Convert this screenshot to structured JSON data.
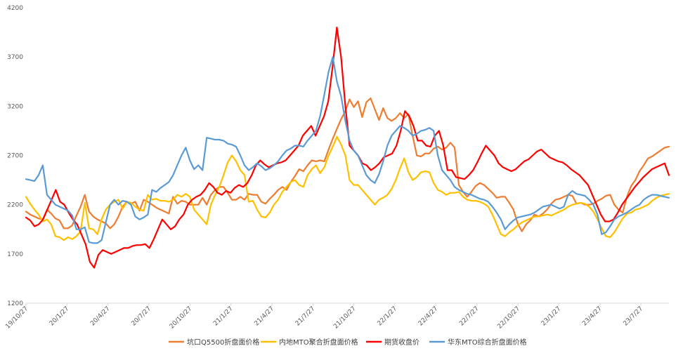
{
  "chart_data": {
    "type": "line",
    "title": "",
    "xlabel": "",
    "ylabel": "",
    "ylim": [
      1200,
      4200
    ],
    "yticks": [
      1200,
      1700,
      2200,
      2700,
      3200,
      3700,
      4200
    ],
    "x_ticks": [
      "19/10/27",
      "20/1/27",
      "20/4/27",
      "20/7/27",
      "20/10/27",
      "21/1/27",
      "21/4/27",
      "21/7/27",
      "21/10/27",
      "22/1/27",
      "22/4/27",
      "22/7/27",
      "22/10/27",
      "23/1/27",
      "23/4/27",
      "23/7/27"
    ],
    "grid": false,
    "legend_position": "bottom",
    "series": [
      {
        "name": "坑口Q5500折盘面价格",
        "color": "#ED7D31",
        "values": [
          2130,
          2100,
          2080,
          2060,
          2050,
          2150,
          2110,
          2060,
          2040,
          1960,
          1960,
          1990,
          2090,
          2180,
          2300,
          2130,
          2080,
          2050,
          2030,
          2010,
          1960,
          2000,
          2080,
          2180,
          2230,
          2210,
          2230,
          2140,
          2250,
          2230,
          2200,
          2170,
          2150,
          2130,
          2110,
          2280,
          2210,
          2240,
          2230,
          2200,
          2200,
          2200,
          2270,
          2200,
          2300,
          2350,
          2380,
          2380,
          2320,
          2250,
          2250,
          2280,
          2250,
          2310,
          2300,
          2300,
          2230,
          2210,
          2260,
          2300,
          2350,
          2380,
          2350,
          2430,
          2490,
          2560,
          2540,
          2600,
          2650,
          2640,
          2650,
          2640,
          2760,
          2870,
          2970,
          3070,
          3150,
          3270,
          3190,
          3250,
          3090,
          3240,
          3280,
          3170,
          3060,
          3180,
          3080,
          3050,
          3080,
          3130,
          3080,
          3120,
          2900,
          2700,
          2690,
          2720,
          2720,
          2770,
          2790,
          2760,
          2780,
          2830,
          2780,
          2400,
          2330,
          2280,
          2330,
          2390,
          2420,
          2400,
          2360,
          2320,
          2270,
          2280,
          2280,
          2220,
          2150,
          2010,
          1930,
          2000,
          2040,
          2100,
          2080,
          2110,
          2150,
          2210,
          2250,
          2260,
          2280,
          2300,
          2290,
          2210,
          2220,
          2200,
          2200,
          2210,
          2240,
          2260,
          2290,
          2300,
          2200,
          2150,
          2120,
          2280,
          2390,
          2450,
          2540,
          2600,
          2670,
          2690,
          2720,
          2750,
          2780,
          2790
        ]
      },
      {
        "name": "内地MTO聚合折盘面价格",
        "color": "#FFC000",
        "values": [
          2280,
          2210,
          2150,
          2100,
          2030,
          2050,
          2000,
          1880,
          1870,
          1840,
          1870,
          1850,
          1880,
          1930,
          2220,
          1960,
          1950,
          1900,
          2050,
          2150,
          2200,
          2230,
          2250,
          2160,
          2230,
          2220,
          2180,
          2150,
          2140,
          2300,
          2250,
          2260,
          2240,
          2240,
          2230,
          2250,
          2300,
          2280,
          2310,
          2280,
          2150,
          2100,
          2050,
          2000,
          2200,
          2300,
          2380,
          2500,
          2630,
          2700,
          2640,
          2550,
          2500,
          2230,
          2240,
          2150,
          2080,
          2070,
          2120,
          2200,
          2250,
          2330,
          2380,
          2430,
          2450,
          2400,
          2380,
          2500,
          2560,
          2600,
          2520,
          2580,
          2700,
          2790,
          2890,
          2810,
          2700,
          2450,
          2400,
          2400,
          2350,
          2300,
          2250,
          2200,
          2250,
          2270,
          2300,
          2360,
          2450,
          2570,
          2670,
          2530,
          2450,
          2480,
          2530,
          2540,
          2530,
          2420,
          2350,
          2330,
          2300,
          2320,
          2320,
          2330,
          2280,
          2250,
          2240,
          2240,
          2230,
          2210,
          2180,
          2100,
          2000,
          1900,
          1880,
          1920,
          1950,
          1990,
          2020,
          2040,
          2060,
          2080,
          2080,
          2090,
          2100,
          2090,
          2110,
          2130,
          2150,
          2180,
          2200,
          2210,
          2220,
          2210,
          2180,
          2130,
          2050,
          1960,
          1880,
          1870,
          1920,
          1990,
          2060,
          2110,
          2120,
          2150,
          2160,
          2180,
          2200,
          2240,
          2270,
          2290,
          2300,
          2310
        ]
      },
      {
        "name": "期货收盘价",
        "color": "#FF0000",
        "values": [
          2070,
          2040,
          1980,
          2000,
          2050,
          2150,
          2250,
          2350,
          2230,
          2200,
          2120,
          2050,
          2000,
          1900,
          1800,
          1620,
          1560,
          1690,
          1740,
          1720,
          1700,
          1720,
          1740,
          1760,
          1760,
          1780,
          1790,
          1790,
          1800,
          1760,
          1850,
          1950,
          2050,
          2000,
          1950,
          1980,
          2050,
          2100,
          2200,
          2250,
          2280,
          2300,
          2350,
          2420,
          2380,
          2320,
          2300,
          2340,
          2320,
          2370,
          2400,
          2380,
          2420,
          2500,
          2600,
          2650,
          2610,
          2580,
          2600,
          2620,
          2630,
          2650,
          2700,
          2750,
          2800,
          2900,
          2950,
          3000,
          2900,
          3000,
          3100,
          3250,
          3600,
          4000,
          3700,
          3200,
          2800,
          2750,
          2700,
          2620,
          2600,
          2550,
          2580,
          2620,
          2680,
          2700,
          2720,
          2800,
          2950,
          3150,
          3100,
          3000,
          2850,
          2850,
          2800,
          2790,
          2900,
          2950,
          2800,
          2550,
          2550,
          2480,
          2470,
          2460,
          2500,
          2550,
          2630,
          2720,
          2800,
          2750,
          2700,
          2620,
          2580,
          2560,
          2540,
          2560,
          2600,
          2640,
          2660,
          2700,
          2740,
          2760,
          2720,
          2680,
          2660,
          2640,
          2630,
          2600,
          2560,
          2530,
          2500,
          2450,
          2400,
          2300,
          2200,
          2100,
          2030,
          2030,
          2050,
          2120,
          2200,
          2260,
          2320,
          2380,
          2430,
          2480,
          2520,
          2560,
          2580,
          2600,
          2620,
          2500
        ]
      },
      {
        "name": "华东MTO综合折盘面价格",
        "color": "#5B9BD5",
        "values": [
          2460,
          2450,
          2440,
          2500,
          2600,
          2300,
          2250,
          2200,
          2180,
          2160,
          2140,
          2090,
          1950,
          1950,
          1970,
          1820,
          1810,
          1810,
          1840,
          2020,
          2200,
          2250,
          2200,
          2240,
          2230,
          2200,
          2080,
          2050,
          2070,
          2100,
          2350,
          2330,
          2370,
          2400,
          2430,
          2500,
          2600,
          2700,
          2780,
          2650,
          2560,
          2600,
          2550,
          2880,
          2870,
          2860,
          2860,
          2850,
          2820,
          2810,
          2790,
          2700,
          2600,
          2550,
          2580,
          2620,
          2590,
          2550,
          2570,
          2600,
          2640,
          2700,
          2750,
          2770,
          2800,
          2800,
          2790,
          2850,
          2900,
          2950,
          3100,
          3320,
          3550,
          3700,
          3450,
          3300,
          3050,
          2850,
          2750,
          2700,
          2600,
          2500,
          2450,
          2420,
          2510,
          2640,
          2800,
          2900,
          2950,
          3000,
          2980,
          2950,
          2900,
          2920,
          2950,
          2960,
          2980,
          2950,
          2700,
          2550,
          2500,
          2450,
          2380,
          2350,
          2330,
          2310,
          2300,
          2280,
          2260,
          2250,
          2230,
          2180,
          2120,
          2050,
          1950,
          2000,
          2040,
          2070,
          2080,
          2090,
          2100,
          2120,
          2150,
          2180,
          2190,
          2200,
          2180,
          2160,
          2180,
          2300,
          2340,
          2310,
          2300,
          2290,
          2250,
          2200,
          2100,
          1900,
          1920,
          1980,
          2050,
          2080,
          2100,
          2120,
          2150,
          2180,
          2200,
          2250,
          2280,
          2300,
          2300,
          2290,
          2280,
          2270
        ]
      }
    ]
  }
}
